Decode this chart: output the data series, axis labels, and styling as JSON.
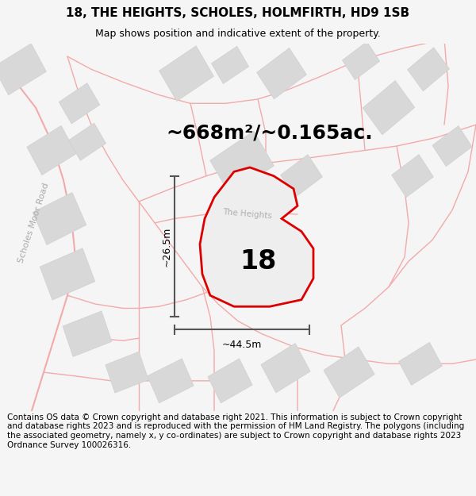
{
  "title": "18, THE HEIGHTS, SCHOLES, HOLMFIRTH, HD9 1SB",
  "subtitle": "Map shows position and indicative extent of the property.",
  "footer": "Contains OS data © Crown copyright and database right 2021. This information is subject to Crown copyright and database rights 2023 and is reproduced with the permission of HM Land Registry. The polygons (including the associated geometry, namely x, y co-ordinates) are subject to Crown copyright and database rights 2023 Ordnance Survey 100026316.",
  "area_label": "~668m²/~0.165ac.",
  "width_label": "~44.5m",
  "height_label": "~26.5m",
  "number_label": "18",
  "bg_color": "#f5f5f5",
  "map_bg": "#ffffff",
  "road_color": "#f2aaaa",
  "building_color": "#d8d8d8",
  "building_edge": "#d0d0d0",
  "highlight_color": "#dd0000",
  "highlight_fill": "#eeeeee",
  "dim_line_color": "#555555",
  "road_label_color": "#aaaaaa",
  "road_label": "Scholes Moor Road",
  "title_fontsize": 11,
  "subtitle_fontsize": 9,
  "footer_fontsize": 7.5,
  "area_label_fontsize": 18,
  "number_fontsize": 24,
  "dim_fontsize": 9,
  "road_label_fontsize": 8
}
